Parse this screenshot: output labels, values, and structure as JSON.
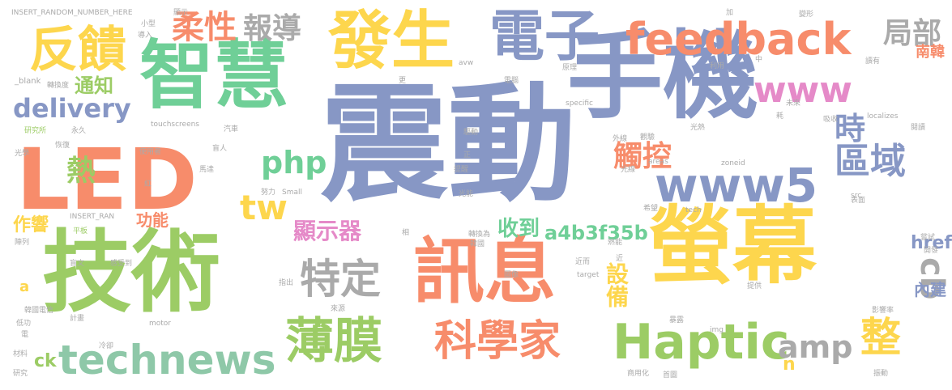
{
  "words": {
    "zhendong": "震動",
    "shouji": "手機",
    "jishu": "技術",
    "yingmu": "螢幕",
    "zhihui": "智慧",
    "led": "LED",
    "xunxi": "訊息",
    "fasheng": "發生",
    "dianzi": "電子",
    "feedback": "feedback",
    "fankui": "反饋",
    "haptic": "Haptic",
    "www5": "www5",
    "technews": "technews",
    "kexuejia": "科學家",
    "bomo": "薄膜",
    "teding": "特定",
    "www": "www",
    "delivery": "delivery",
    "rouxing": "柔性",
    "baodao": "報導",
    "jubu": "局部",
    "shi": "時",
    "quyu": "區域",
    "chukong": "觸控",
    "php": "php",
    "tw": "tw",
    "re": "熱",
    "zheng": "整",
    "amp": "amp",
    "cb": "cb",
    "xianshiqi": "顯示器",
    "shebei": "設備",
    "shoudao": "收到",
    "hash": "a4b3f35b",
    "href": "href",
    "nanhan": "南韓",
    "neijian": "內建",
    "tongzhi": "通知",
    "zuoxiang": "作響",
    "gongneng": "功能",
    "ck": "ck",
    "n": "n",
    "a": "a",
    "insert1": "INSERT_RANDOM_NUMBER_HERE",
    "insert2": "INSERT_RAN",
    "blank": "_blank",
    "xianshi": "顯示",
    "xiaoxing": "小型",
    "daoru": "導入",
    "zhuanhuandu": "轉換度",
    "yanjiusuo": "研究所",
    "yongjiu": "永久",
    "qichezhi": "汽車",
    "guangxue": "光學",
    "huifu": "恢復",
    "shiyongzhe": "使用者",
    "mangren": "盲人",
    "mada": "馬達",
    "hong": "紅",
    "nuli": "努力",
    "small": "Small",
    "pingban": "平板",
    "zhenlie": "陣列",
    "mangwen": "盲文",
    "gandaodao": "感受到",
    "hanguodianxin": "韓國電信",
    "jihua": "計畫",
    "motor": "motor",
    "digong": "低功",
    "dian": "電",
    "lengque": "冷卻",
    "cailiao": "材料",
    "yanjiu": "研究",
    "touch": "touchscreens",
    "geng": "更",
    "avw": "avw",
    "diannao": "電腦",
    "yuanli": "原理",
    "specific": "specific",
    "qudong": "驅動",
    "zheng2": "正",
    "tixing": "提醒",
    "guangneng": "光能",
    "xiangdui": "相",
    "zhuanhuanwei": "轉換為",
    "hanguo": "韓國",
    "zhichu": "指出",
    "laiyuan": "來源",
    "tuxiang": "圖像",
    "target": "target",
    "waixian": "外線",
    "ganying": "觀驗",
    "guangre": "光熱",
    "areas": "areas",
    "zoneid": "zoneid",
    "guangxian": "光線",
    "xiwang": "希望",
    "tech": "tech",
    "src": "src",
    "biaomian": "表面",
    "reneng": "熱能",
    "jinjin": "近而",
    "jin": "近",
    "tigong": "提供",
    "baolu": "暴露",
    "shangyonghua": "商用化",
    "shoutu": "首圖",
    "img": "img",
    "jia": "加",
    "zhong": "中",
    "liyong": "利用",
    "bianxing": "變形",
    "weilai": "未來",
    "hao": "耗",
    "xishou": "吸收",
    "localizes": "localizes",
    "yuedu": "讀有",
    "yuedu2": "閱讀",
    "changshi": "嘗試",
    "kaifa": "開發",
    "yingxianglv": "影響率",
    "zhendong2": "振動"
  }
}
